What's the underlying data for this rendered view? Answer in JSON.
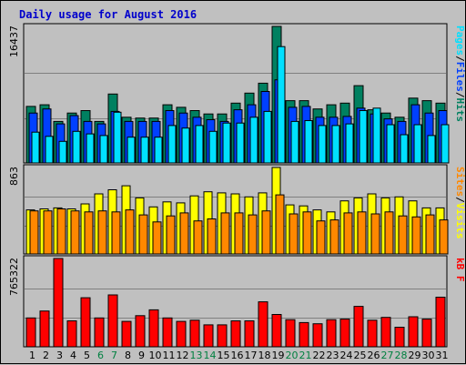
{
  "chart_data": {
    "title": "Daily usage for August 2016",
    "type": "bar",
    "categories": [
      "1",
      "2",
      "3",
      "4",
      "5",
      "6",
      "7",
      "8",
      "9",
      "10",
      "11",
      "12",
      "13",
      "14",
      "15",
      "16",
      "17",
      "18",
      "19",
      "20",
      "21",
      "22",
      "23",
      "24",
      "25",
      "26",
      "27",
      "28",
      "29",
      "30",
      "31"
    ],
    "weekend_days": [
      "6",
      "7",
      "13",
      "14",
      "20",
      "21",
      "27",
      "28"
    ],
    "colors": {
      "hits": "#008060",
      "files": "#0040FF",
      "pages": "#00E0FF",
      "visits": "#FFFF00",
      "sites": "#FF8800",
      "kbf": "#FF0000",
      "weekday_label": "#000000",
      "weekend_label": "#008040",
      "title": "#0000CC",
      "plot_bg": "#C0C0C0"
    },
    "panels": [
      {
        "name": "top",
        "ymax": 16437,
        "ymax_label": "16437",
        "legend": [
          "Pages",
          "/",
          "Files",
          "/",
          "Hits"
        ],
        "legend_colors": [
          "#00E0FF",
          "#000000",
          "#0040FF",
          "#000000",
          "#008060"
        ],
        "series": [
          {
            "name": "Hits",
            "color": "#008060",
            "values": [
              6800,
              7000,
              5000,
              6000,
              6300,
              5000,
              8300,
              5500,
              5400,
              5400,
              7000,
              6700,
              6300,
              5900,
              5900,
              7200,
              8400,
              9600,
              16437,
              7500,
              7500,
              6500,
              7000,
              7200,
              9300,
              6400,
              6000,
              5500,
              7800,
              7500,
              7200
            ]
          },
          {
            "name": "Files",
            "color": "#0040FF",
            "values": [
              6000,
              6500,
              4700,
              5700,
              5000,
              4700,
              6200,
              5000,
              5000,
              5000,
              6300,
              6000,
              5500,
              5200,
              5000,
              6400,
              7000,
              8600,
              10000,
              6700,
              6800,
              5500,
              5500,
              5600,
              6600,
              5900,
              5300,
              5000,
              7000,
              6000,
              6300
            ]
          },
          {
            "name": "Pages",
            "color": "#00E0FF",
            "values": [
              3700,
              3200,
              2600,
              3800,
              3500,
              3300,
              6100,
              3100,
              3100,
              3100,
              4500,
              4200,
              4500,
              3800,
              4800,
              4800,
              5500,
              6200,
              14000,
              5000,
              5100,
              4500,
              4500,
              4700,
              6300,
              6600,
              4600,
              3400,
              4600,
              3300,
              4600
            ]
          }
        ]
      },
      {
        "name": "middle",
        "ymax": 863,
        "ymax_label": "863",
        "legend": [
          "Sites",
          "/",
          "Visits"
        ],
        "legend_colors": [
          "#FF8800",
          "#000000",
          "#FFFF00"
        ],
        "series": [
          {
            "name": "Visits",
            "color": "#FFFF00",
            "values": [
              440,
              450,
              460,
              450,
              500,
              600,
              640,
              680,
              560,
              470,
              520,
              510,
              580,
              620,
              610,
              600,
              570,
              610,
              863,
              490,
              480,
              440,
              420,
              530,
              560,
              600,
              560,
              570,
              530,
              460,
              460
            ]
          },
          {
            "name": "Sites",
            "color": "#FF8800",
            "values": [
              430,
              430,
              450,
              430,
              420,
              430,
              420,
              440,
              390,
              320,
              380,
              410,
              330,
              350,
              410,
              410,
              390,
              430,
              590,
              400,
              420,
              330,
              340,
              410,
              420,
              400,
              420,
              380,
              370,
              390,
              340
            ]
          }
        ]
      },
      {
        "name": "bottom",
        "ymax": 765322,
        "ymax_label": "765322",
        "legend": [
          "kB F"
        ],
        "legend_colors": [
          "#FF0000"
        ],
        "series": [
          {
            "name": "kB F",
            "color": "#FF0000",
            "values": [
              250000,
              310000,
              765322,
              225000,
              425000,
              250000,
              450000,
              220000,
              270000,
              320000,
              250000,
              220000,
              230000,
              190000,
              190000,
              225000,
              225000,
              390000,
              280000,
              235000,
              210000,
              200000,
              235000,
              240000,
              350000,
              230000,
              255000,
              170000,
              260000,
              240000,
              430000
            ]
          }
        ]
      }
    ]
  }
}
